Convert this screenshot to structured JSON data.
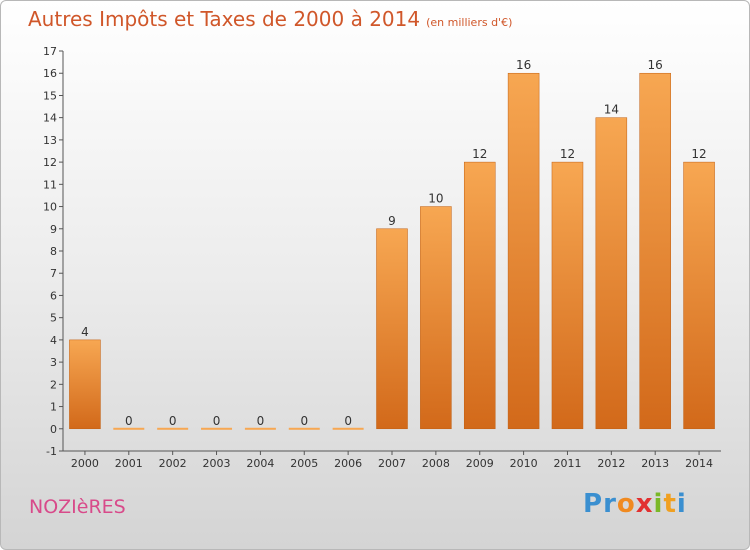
{
  "title": "Autres Impôts et Taxes de 2000 à 2014",
  "unit": "(en milliers d'€)",
  "place": "NOZIèRES",
  "logo": {
    "letters": [
      "P",
      "r",
      "o",
      "x",
      "i",
      "t",
      "i"
    ],
    "colors": [
      "#3a8fd0",
      "#3a8fd0",
      "#f08a20",
      "#e23030",
      "#7ab828",
      "#f0a020",
      "#3a8fd0"
    ]
  },
  "colors": {
    "bar_top": "#f7a752",
    "bar_bottom": "#d2691a",
    "text": "#333333",
    "title": "#d0572a",
    "place": "#d84a8a"
  },
  "chart_data": {
    "type": "bar",
    "categories": [
      "2000",
      "2001",
      "2002",
      "2003",
      "2004",
      "2005",
      "2006",
      "2007",
      "2008",
      "2009",
      "2010",
      "2011",
      "2012",
      "2013",
      "2014"
    ],
    "values": [
      4,
      0,
      0,
      0,
      0,
      0,
      0,
      9,
      10,
      12,
      16,
      12,
      14,
      16,
      12
    ],
    "ylim": [
      -1,
      17
    ],
    "yticks": [
      -1,
      0,
      1,
      2,
      3,
      4,
      5,
      6,
      7,
      8,
      9,
      10,
      11,
      12,
      13,
      14,
      15,
      16,
      17
    ],
    "data_labels": true,
    "grid": false
  }
}
